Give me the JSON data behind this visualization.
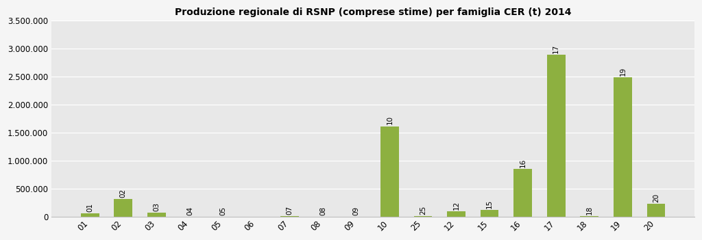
{
  "title": "Produzione regionale di RSNP (comprese stime) per famiglia CER (t) 2014",
  "categories": [
    "01",
    "02",
    "03",
    "04",
    "05",
    "06",
    "07",
    "08",
    "09",
    "10",
    "25",
    "12",
    "15",
    "16",
    "17",
    "18",
    "19",
    "20"
  ],
  "values": [
    70000,
    320000,
    75000,
    8000,
    5000,
    3000,
    20000,
    5000,
    5000,
    1620000,
    10000,
    100000,
    130000,
    860000,
    2900000,
    15000,
    2490000,
    230000
  ],
  "bar_color": "#8db040",
  "background_color": "#e8e8e8",
  "fig_background": "#f5f5f5",
  "ylim": [
    0,
    3500000
  ],
  "yticks": [
    0,
    500000,
    1000000,
    1500000,
    2000000,
    2500000,
    3000000,
    3500000
  ],
  "ytick_labels": [
    "0",
    "500.000",
    "1.000.000",
    "1.500.000",
    "2.000.000",
    "2.500.000",
    "3.000.000",
    "3.500.000"
  ],
  "title_fontsize": 10,
  "tick_fontsize": 8.5,
  "bar_label_fontsize": 7.5,
  "xlabel_rotation": 45
}
